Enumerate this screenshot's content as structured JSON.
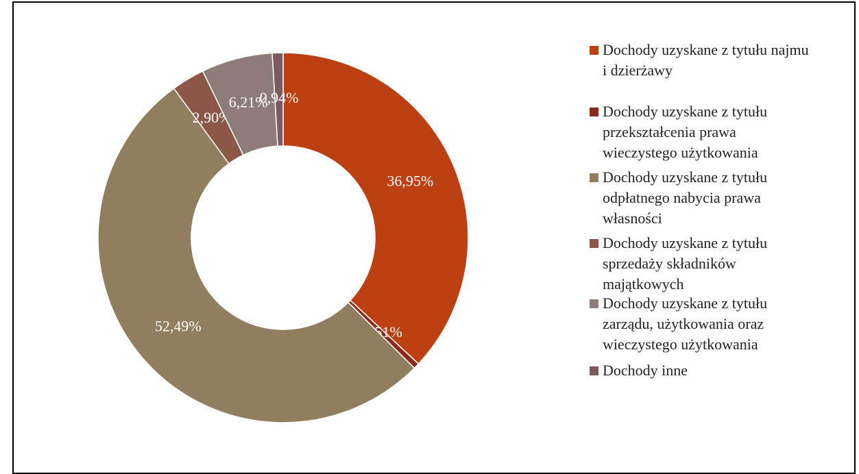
{
  "chart_data": {
    "type": "donut",
    "categories": [
      "Dochody uzyskane z tytułu najmu i dzierżawy",
      "Dochody uzyskane z tytułu przekształcenia prawa wieczystego użytkowania",
      "Dochody uzyskane z tytułu odpłatnego nabycia prawa własności",
      "Dochody uzyskane z tytułu sprzedaży składników majątkowych",
      "Dochody uzyskane z tytułu zarządu, użytkowania oraz wieczystego użytkowania",
      "Dochody inne"
    ],
    "values": [
      36.95,
      0.51,
      52.49,
      2.9,
      6.21,
      0.94
    ],
    "value_labels": [
      "36,95%",
      "0,51%",
      "52,49%",
      "2,90%",
      "6,21%",
      "0,94%"
    ],
    "colors": [
      "#bd4013",
      "#8a2a1b",
      "#917e5e",
      "#8d5747",
      "#8e7c7b",
      "#7c5a5f"
    ],
    "legend": "right"
  }
}
